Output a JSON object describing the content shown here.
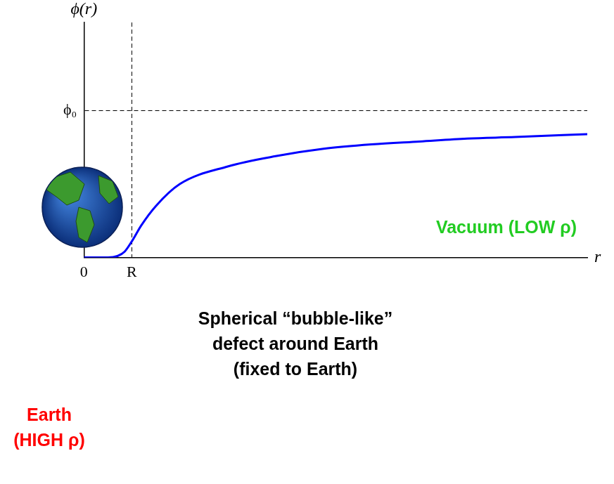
{
  "chart_data": {
    "type": "line",
    "y_label": "ϕ(r)",
    "x_label": "r",
    "x": [
      0,
      0.5,
      0.7,
      0.85,
      1,
      1.2,
      1.5,
      2,
      3,
      4,
      5,
      6,
      7,
      8,
      9,
      10.5
    ],
    "values": [
      0,
      0,
      0.01,
      0.04,
      0.11,
      0.22,
      0.35,
      0.5,
      0.62,
      0.69,
      0.74,
      0.77,
      0.79,
      0.81,
      0.82,
      0.84
    ],
    "color": "#0000ff",
    "xlim": [
      0,
      10.5
    ],
    "ylim": [
      0,
      1.6
    ],
    "xticks": [
      {
        "value": 0,
        "label": "0"
      },
      {
        "value": 1,
        "label": "R"
      }
    ],
    "yticks": [
      {
        "value": 1,
        "label": "ϕ₀"
      }
    ],
    "grid": true,
    "annotations": [
      {
        "text": [
          "Vacuum (LOW ρ)"
        ],
        "color": "#22cc22"
      },
      {
        "text": [
          "Spherical “bubble-like”",
          "defect around Earth",
          "(fixed to Earth)"
        ],
        "color": "#000000"
      },
      {
        "text": [
          "Earth",
          "(HIGH ρ)"
        ],
        "color": "#ff0000"
      }
    ]
  }
}
